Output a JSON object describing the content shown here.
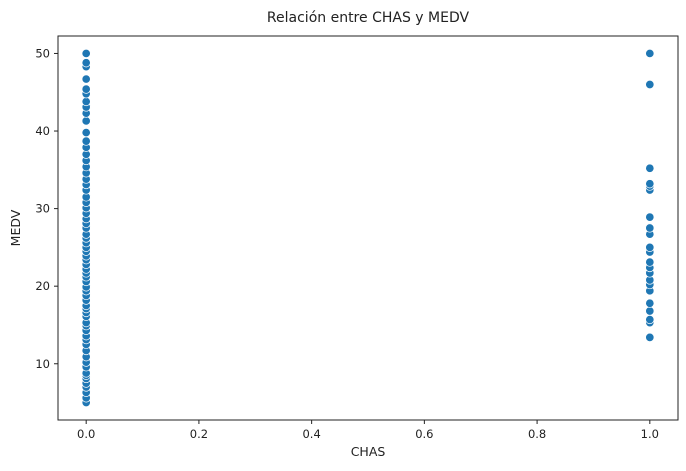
{
  "chart_data": {
    "type": "scatter",
    "title": "Relación entre CHAS y MEDV",
    "xlabel": "CHAS",
    "ylabel": "MEDV",
    "xlim": [
      -0.05,
      1.05
    ],
    "ylim": [
      2.75,
      52.25
    ],
    "xticks": [
      "0.0",
      "0.2",
      "0.4",
      "0.6",
      "0.8",
      "1.0"
    ],
    "yticks": [
      "10",
      "20",
      "30",
      "40",
      "50"
    ],
    "grid": false,
    "legend": "none",
    "color": "#1f77b4",
    "series": [
      {
        "x": 0,
        "y": [
          5.0,
          5.6,
          6.3,
          7.0,
          7.5,
          8.1,
          8.5,
          8.8,
          9.6,
          10.2,
          10.9,
          11.7,
          12.5,
          13.1,
          13.6,
          14.3,
          14.9,
          15.3,
          16.1,
          16.6,
          17.1,
          17.5,
          18.2,
          18.8,
          19.4,
          19.9,
          20.6,
          21.2,
          21.7,
          22.2,
          22.8,
          23.4,
          23.9,
          24.5,
          25.0,
          25.6,
          26.2,
          26.7,
          27.5,
          28.1,
          28.7,
          29.4,
          30.1,
          30.8,
          31.5,
          32.4,
          33.1,
          33.8,
          34.6,
          35.4,
          36.2,
          37.0,
          37.9,
          38.7,
          39.8,
          41.3,
          42.3,
          43.1,
          43.8,
          44.8,
          45.4,
          46.7,
          48.3,
          48.8,
          50.0
        ]
      },
      {
        "x": 1,
        "y": [
          13.4,
          15.3,
          15.7,
          16.8,
          17.8,
          19.4,
          20.2,
          20.8,
          21.7,
          22.4,
          23.1,
          24.4,
          25.0,
          26.7,
          27.5,
          28.9,
          32.4,
          32.9,
          33.2,
          35.2,
          46.0,
          50.0
        ]
      }
    ]
  }
}
